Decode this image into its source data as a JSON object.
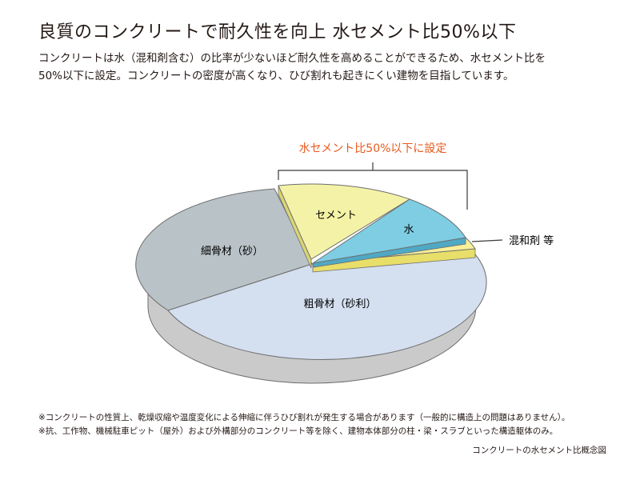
{
  "header": {
    "title": "良質のコンクリートで耐久性を向上 水セメント比50%以下",
    "lead_line1": "コンクリートは水（混和剤含む）の比率が少ないほど耐久性を高めることができるため、水セメント比を",
    "lead_line2": "50%以下に設定。コンクリートの密度が高くなり、ひび割れも起きにくい建物を目指しています。"
  },
  "diagram": {
    "bracket_label": "水セメント比50%以下に設定",
    "slices": {
      "cement": "セメント",
      "water": "水",
      "admixture": "混和剤 等",
      "fine_aggregate": "細骨材（砂）",
      "coarse_aggregate": "粗骨材（砂利）"
    },
    "colors": {
      "cement": "#f4f2a6",
      "water": "#7ecde3",
      "admixture": "#f9f09a",
      "fine_aggregate": "#b9c3c7",
      "coarse_aggregate": "#d4dff0",
      "side": "#cacaca",
      "accent": "#e85a1c"
    }
  },
  "notes": {
    "note1": "※コンクリートの性質上、乾燥収縮や温度変化による伸縮に伴うひび割れが発生する場合があります（一般的に構造上の問題はありません）。",
    "note2": "※抗、工作物、機械駐車ピット（屋外）および外構部分のコンクリート等を除く、建物本体部分の柱・梁・スラブといった構造躯体のみ。"
  },
  "caption": "コンクリートの水セメント比概念図"
}
